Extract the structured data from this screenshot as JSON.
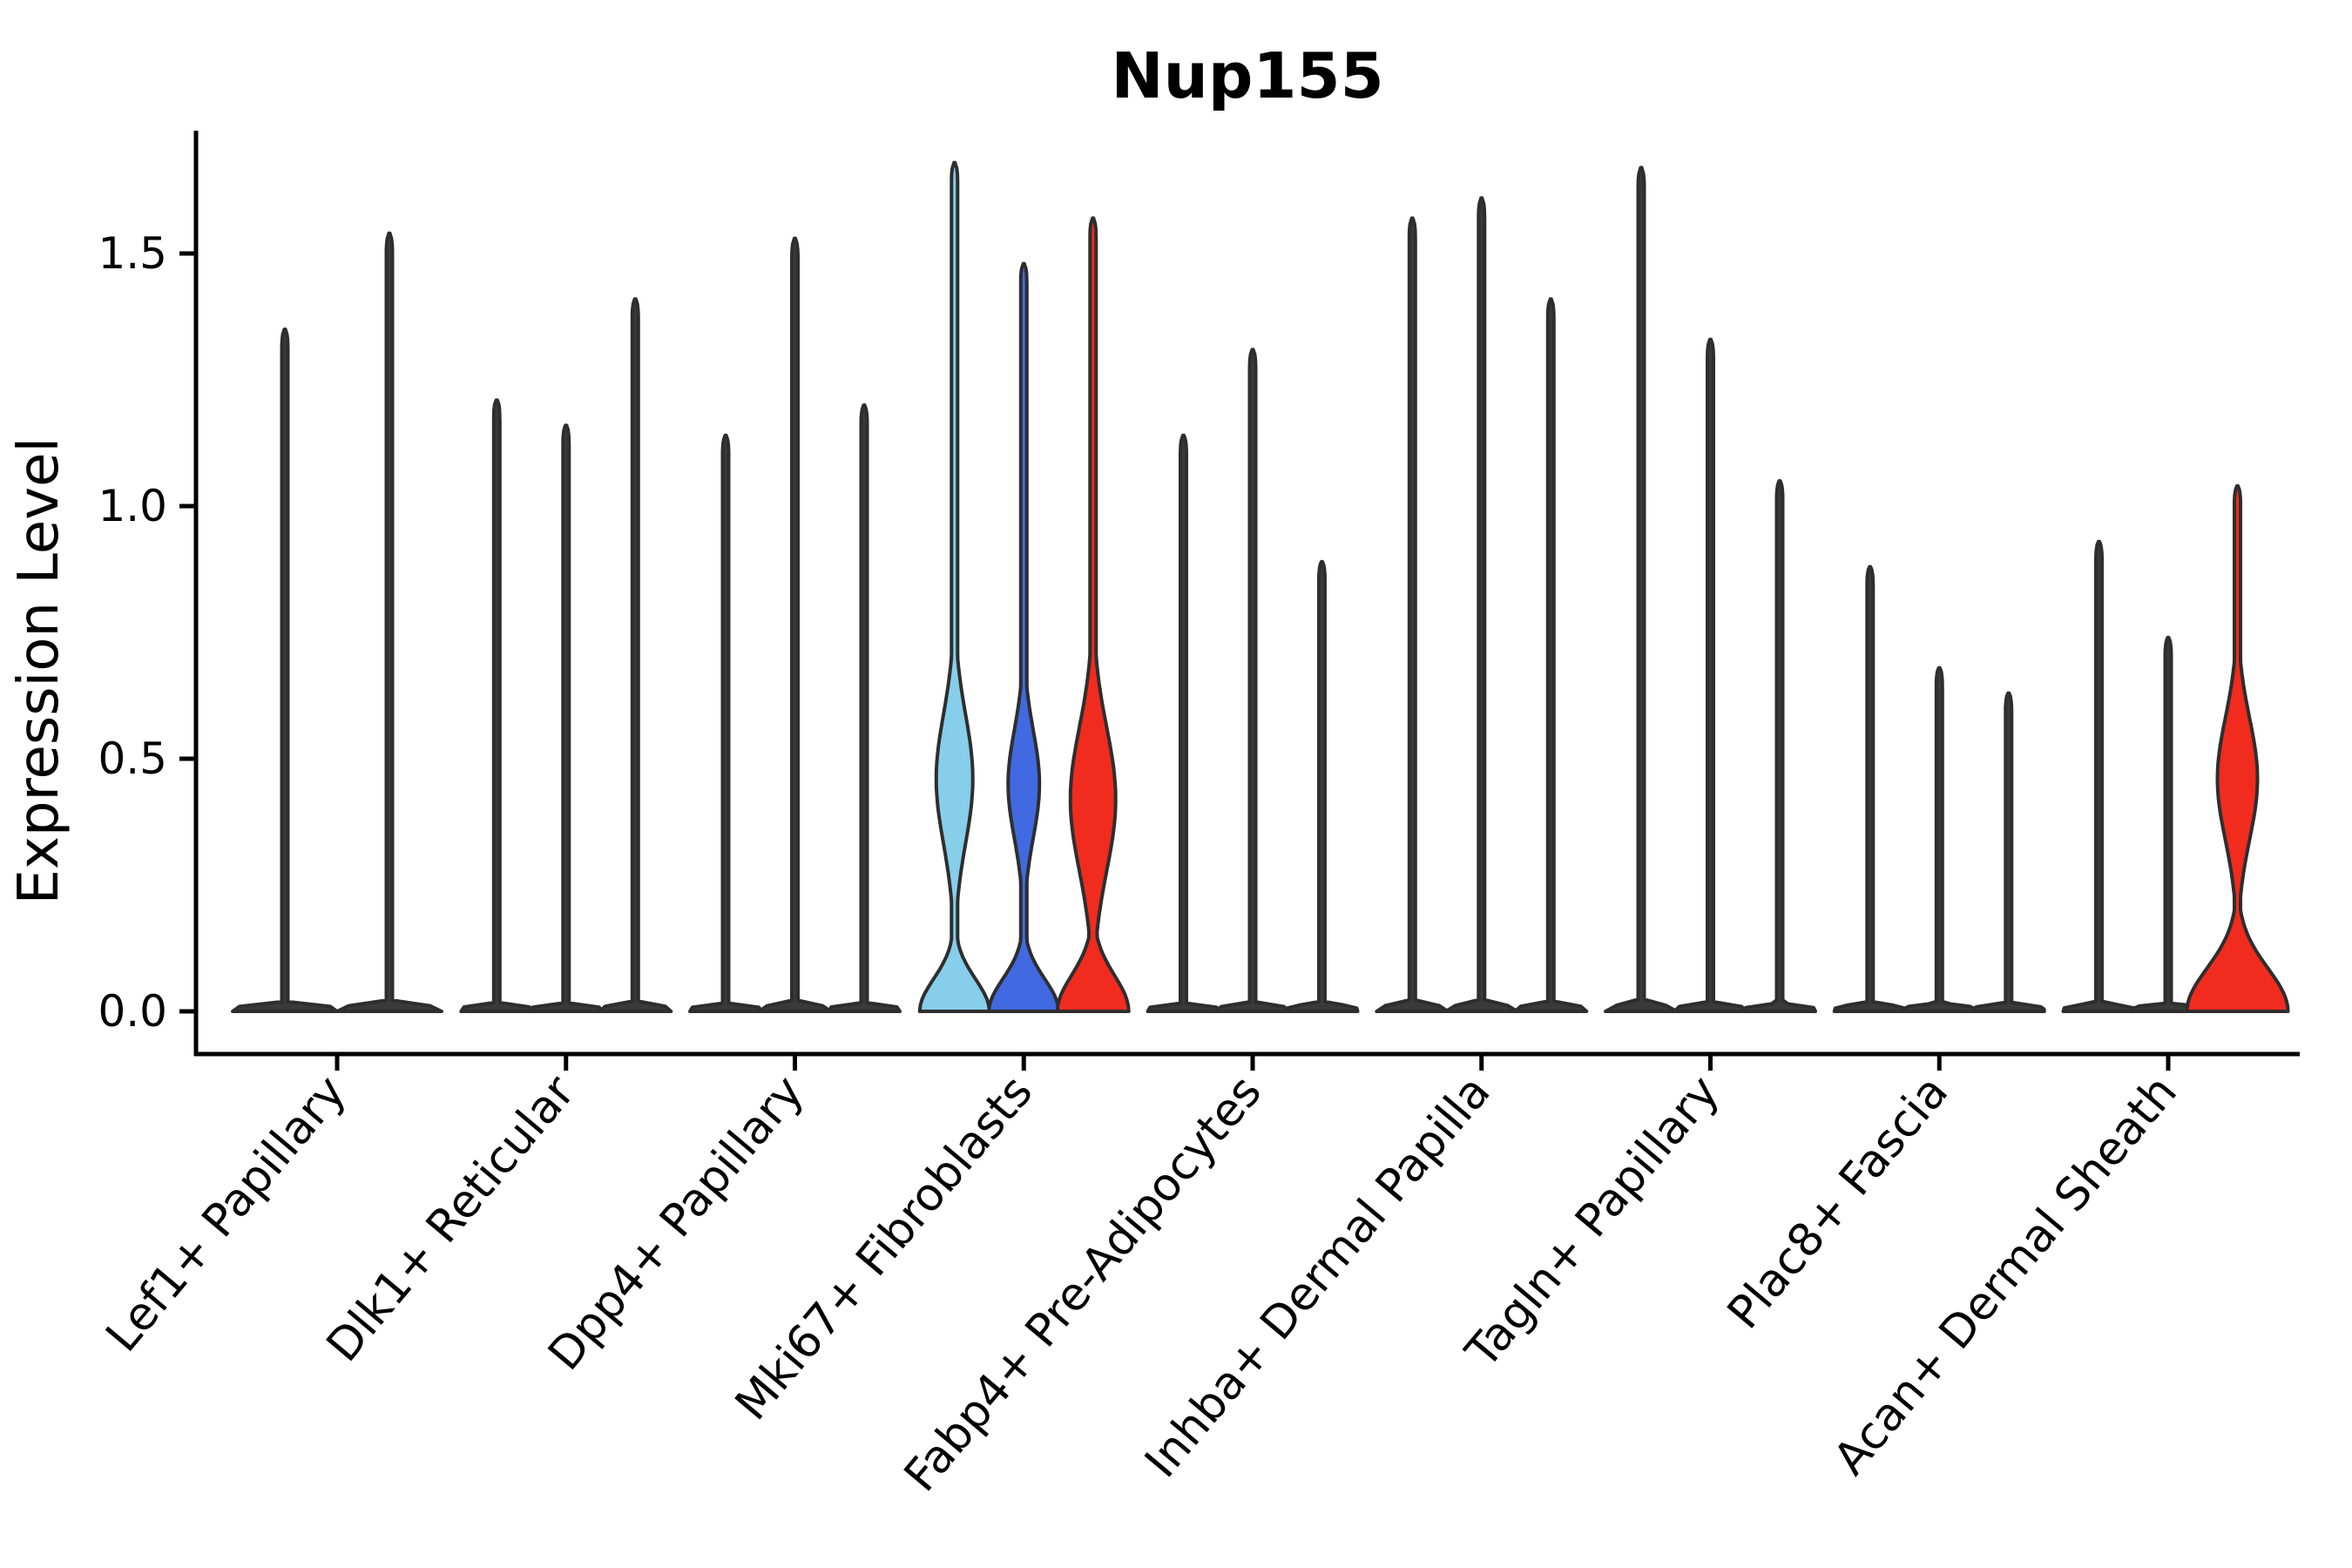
{
  "chart_data": {
    "type": "violin",
    "title": "Nup155",
    "ylabel": "Expression Level",
    "xlabel": "",
    "ylim": [
      -0.08,
      1.74
    ],
    "yticks": [
      "0.0",
      "0.5",
      "1.0",
      "1.5"
    ],
    "grid": false,
    "legend": null,
    "categories": [
      "Lef1+ Papillary",
      "Dlk1+ Reticular",
      "Dpp4+ Papillary",
      "Mki67+ Fibroblasts",
      "Fabp4+ Pre-Adipocytes",
      "Inhba+ Dermal Papilla",
      "Tagln+ Papillary",
      "Plac8+ Fascia",
      "Acan+ Dermal Sheath"
    ],
    "groups": [
      {
        "label": "Lef1+ Papillary",
        "violins": [
          {
            "max": 1.35
          },
          {
            "max": 1.54
          }
        ]
      },
      {
        "label": "Dlk1+ Reticular",
        "violins": [
          {
            "max": 1.21
          },
          {
            "max": 1.16
          },
          {
            "max": 1.41
          }
        ]
      },
      {
        "label": "Dpp4+ Papillary",
        "violins": [
          {
            "max": 1.14
          },
          {
            "max": 1.53
          },
          {
            "max": 1.2
          }
        ]
      },
      {
        "label": "Mki67+ Fibroblasts",
        "violins": [
          {
            "max": 1.68,
            "fill": "#87CEEB",
            "bulge": {
              "mode": 0.46,
              "sigma": 0.18,
              "hw": 21
            },
            "base": {
              "hw": 40,
              "sigma": 0.09
            }
          },
          {
            "max": 1.48,
            "fill": "#4169E1",
            "bulge": {
              "mode": 0.45,
              "sigma": 0.15,
              "hw": 18
            },
            "base": {
              "hw": 40,
              "sigma": 0.09
            }
          },
          {
            "max": 1.57,
            "fill": "#F22B1F",
            "bulge": {
              "mode": 0.42,
              "sigma": 0.2,
              "hw": 26
            },
            "base": {
              "hw": 41,
              "sigma": 0.1
            }
          }
        ]
      },
      {
        "label": "Fabp4+ Pre-Adipocytes",
        "violins": [
          {
            "max": 1.14
          },
          {
            "max": 1.31
          },
          {
            "max": 0.89
          }
        ]
      },
      {
        "label": "Inhba+ Dermal Papilla",
        "violins": [
          {
            "max": 1.57
          },
          {
            "max": 1.61
          },
          {
            "max": 1.41
          }
        ]
      },
      {
        "label": "Tagln+ Papillary",
        "violins": [
          {
            "max": 1.67
          },
          {
            "max": 1.33
          },
          {
            "max": 1.05
          }
        ]
      },
      {
        "label": "Plac8+ Fascia",
        "violins": [
          {
            "max": 0.88
          },
          {
            "max": 0.68
          },
          {
            "max": 0.63
          }
        ]
      },
      {
        "label": "Acan+ Dermal Sheath",
        "violins": [
          {
            "max": 0.93
          },
          {
            "max": 0.74
          },
          {
            "max": 1.04,
            "fill": "#F22B1F",
            "bulge": {
              "mode": 0.46,
              "sigma": 0.17,
              "hw": 23
            },
            "base": {
              "hw": 58,
              "sigma": 0.12
            }
          }
        ]
      }
    ],
    "colors": {
      "spike_fill": "#3A3A3A",
      "edge": "#2E2E2E",
      "highlight_lightblue": "#87CEEB",
      "highlight_blue": "#4169E1",
      "highlight_red": "#F22B1F",
      "axis": "#000000",
      "background": "#FFFFFF"
    }
  }
}
